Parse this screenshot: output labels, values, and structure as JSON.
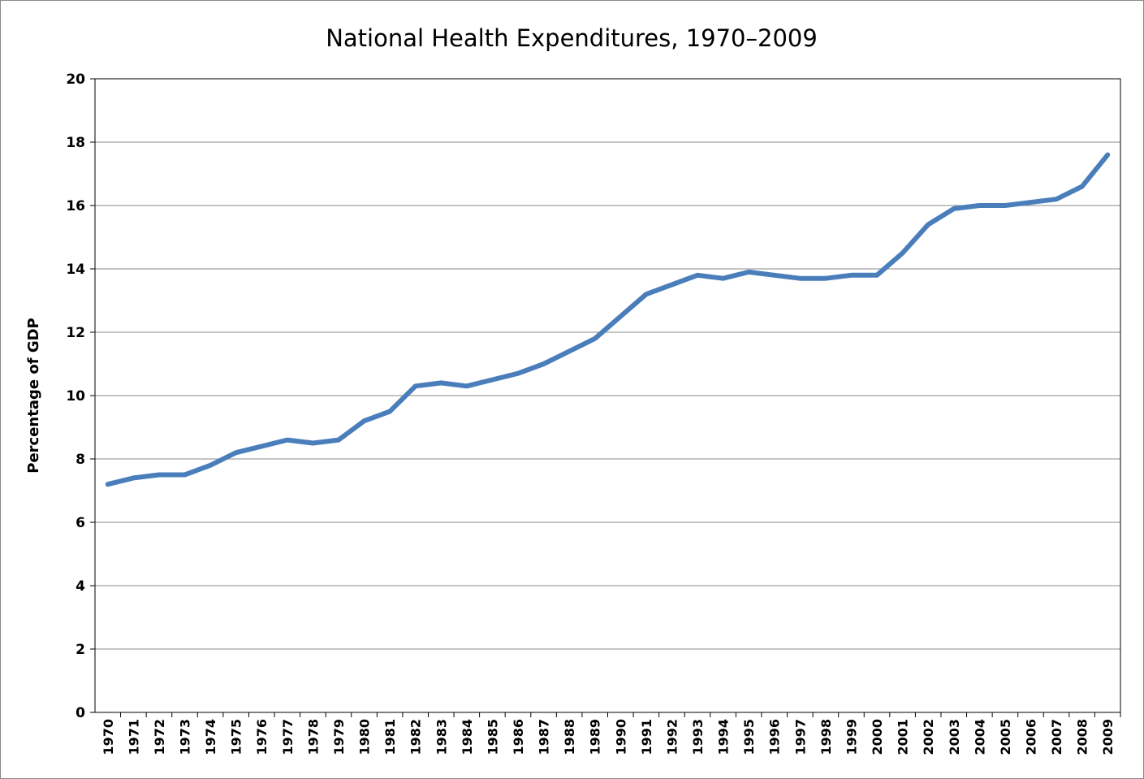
{
  "chart_data": {
    "type": "line",
    "title": "National Health Expenditures, 1970–2009",
    "xlabel": "",
    "ylabel": "Percentage of GDP",
    "ylim": [
      0,
      20
    ],
    "yticks": [
      "0",
      "2",
      "4",
      "6",
      "8",
      "10",
      "12",
      "14",
      "16",
      "18",
      "20"
    ],
    "grid": true,
    "legend": "none",
    "line_color": "#4a7ebb",
    "categories": [
      "1970",
      "1971",
      "1972",
      "1973",
      "1974",
      "1975",
      "1976",
      "1977",
      "1978",
      "1979",
      "1980",
      "1981",
      "1982",
      "1983",
      "1984",
      "1985",
      "1986",
      "1987",
      "1988",
      "1989",
      "1990",
      "1991",
      "1992",
      "1993",
      "1994",
      "1995",
      "1996",
      "1997",
      "1998",
      "1999",
      "2000",
      "2001",
      "2002",
      "2003",
      "2004",
      "2005",
      "2006",
      "2007",
      "2008",
      "2009"
    ],
    "values": [
      7.2,
      7.4,
      7.5,
      7.5,
      7.8,
      8.2,
      8.4,
      8.6,
      8.5,
      8.6,
      9.2,
      9.5,
      10.3,
      10.4,
      10.3,
      10.5,
      10.7,
      11.0,
      11.4,
      11.8,
      12.5,
      13.2,
      13.5,
      13.8,
      13.7,
      13.9,
      13.8,
      13.7,
      13.7,
      13.8,
      13.8,
      14.5,
      15.4,
      15.9,
      16.0,
      16.0,
      16.1,
      16.2,
      16.6,
      17.6
    ]
  }
}
